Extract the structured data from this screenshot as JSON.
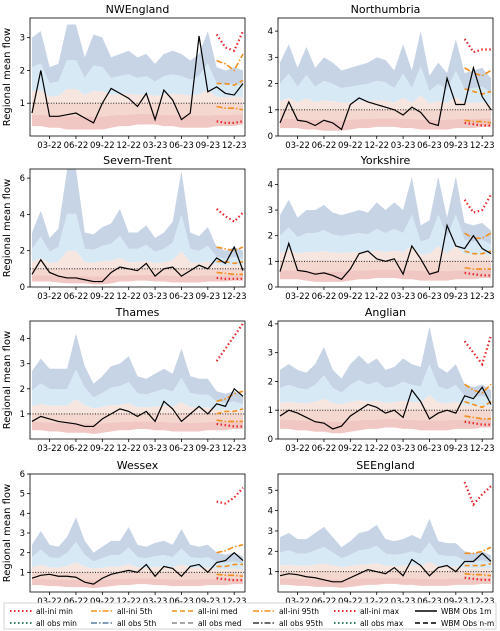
{
  "figure": {
    "ylabel": "Regional mean flow",
    "legend": [
      {
        "label": "all-ini min",
        "color": "#e8262a",
        "dash": "dot"
      },
      {
        "label": "all-ini 5th",
        "color": "#f28e1c",
        "dash": "dashdot"
      },
      {
        "label": "all-ini med",
        "color": "#f28e1c",
        "dash": "dash"
      },
      {
        "label": "all-ini 95th",
        "color": "#f28e1c",
        "dash": "dashdot"
      },
      {
        "label": "all-ini max",
        "color": "#e8262a",
        "dash": "dot"
      },
      {
        "label": "WBM Obs 1m",
        "color": "#000000",
        "dash": "solid"
      },
      {
        "label": "all obs min",
        "color": "#2f7d5b",
        "dash": "dot"
      },
      {
        "label": "all obs 5th",
        "color": "#5a7fa0",
        "dash": "dashdot"
      },
      {
        "label": "all obs med",
        "color": "#888888",
        "dash": "dash"
      },
      {
        "label": "all obs 95th",
        "color": "#3a3a3a",
        "dash": "dashdot"
      },
      {
        "label": "all obs max",
        "color": "#2f7d5b",
        "dash": "dot"
      },
      {
        "label": "WBM Obs n-m",
        "color": "#000000",
        "dash": "dash"
      }
    ],
    "xticks": [
      "03-22",
      "06-22",
      "09-22",
      "12-22",
      "03-23",
      "06-23",
      "09-23",
      "12-23"
    ]
  },
  "chart_data": [
    {
      "type": "line",
      "title": "NWEngland",
      "ylim": [
        0,
        3.6
      ],
      "yticks": [
        1,
        2,
        3
      ],
      "x": [
        "01-22",
        "02-22",
        "03-22",
        "04-22",
        "05-22",
        "06-22",
        "07-22",
        "08-22",
        "09-22",
        "10-22",
        "11-22",
        "12-22",
        "01-23",
        "02-23",
        "03-23",
        "04-23",
        "05-23",
        "06-23",
        "07-23",
        "08-23",
        "09-23",
        "10-23",
        "11-23",
        "12-23",
        "01-24"
      ],
      "obs": [
        0.7,
        2.0,
        0.6,
        0.6,
        0.65,
        0.7,
        0.55,
        0.4,
        1.0,
        1.45,
        1.3,
        1.15,
        0.9,
        1.3,
        0.5,
        1.4,
        1.1,
        0.5,
        0.7,
        3.05,
        1.35,
        1.5,
        1.3,
        1.25,
        1.6
      ],
      "band_max": [
        3.0,
        3.2,
        2.1,
        2.2,
        3.4,
        3.4,
        2.4,
        3.1,
        3.0,
        2.4,
        2.5,
        2.6,
        2.4,
        2.5,
        2.2,
        2.5,
        2.6,
        2.5,
        2.3,
        2.5,
        3.2,
        2.1,
        2.0,
        2.1,
        2.0
      ],
      "band_min": [
        0.3,
        0.3,
        0.25,
        0.25,
        0.2,
        0.2,
        0.2,
        0.2,
        0.2,
        0.25,
        0.3,
        0.3,
        0.35,
        0.35,
        0.35,
        0.3,
        0.3,
        0.25,
        0.25,
        0.25,
        0.25,
        0.3,
        0.3,
        0.3,
        0.35
      ],
      "ini_max": [
        3.1,
        2.7,
        2.6,
        3.2
      ],
      "ini_95": [
        2.3,
        2.2,
        2.0,
        2.5
      ],
      "ini_med": [
        1.6,
        1.6,
        1.55,
        1.7
      ],
      "ini_5": [
        0.9,
        0.85,
        0.85,
        0.8
      ],
      "ini_min": [
        0.45,
        0.4,
        0.4,
        0.45
      ]
    },
    {
      "type": "line",
      "title": "Northumbria",
      "ylim": [
        0,
        4.5
      ],
      "yticks": [
        0,
        1,
        2,
        3,
        4
      ],
      "x": [
        "01-22",
        "02-22",
        "03-22",
        "04-22",
        "05-22",
        "06-22",
        "07-22",
        "08-22",
        "09-22",
        "10-22",
        "11-22",
        "12-22",
        "01-23",
        "02-23",
        "03-23",
        "04-23",
        "05-23",
        "06-23",
        "07-23",
        "08-23",
        "09-23",
        "10-23",
        "11-23",
        "12-23",
        "01-24"
      ],
      "obs": [
        0.5,
        1.3,
        0.6,
        0.55,
        0.4,
        0.6,
        0.5,
        0.25,
        1.2,
        1.45,
        1.3,
        1.2,
        1.1,
        1.0,
        0.8,
        1.1,
        0.9,
        0.5,
        0.4,
        2.2,
        1.2,
        1.2,
        2.6,
        1.5,
        1.0
      ],
      "band_max": [
        2.8,
        3.5,
        2.6,
        3.4,
        2.6,
        3.0,
        2.8,
        2.5,
        2.6,
        2.7,
        2.8,
        3.0,
        2.9,
        2.5,
        3.5,
        2.5,
        4.0,
        2.3,
        2.8,
        2.4,
        3.7,
        2.4,
        2.5,
        2.6,
        2.2
      ],
      "band_min": [
        0.3,
        0.3,
        0.3,
        0.25,
        0.25,
        0.2,
        0.2,
        0.2,
        0.25,
        0.3,
        0.3,
        0.35,
        0.35,
        0.35,
        0.3,
        0.3,
        0.25,
        0.25,
        0.25,
        0.25,
        0.3,
        0.3,
        0.3,
        0.35,
        0.35
      ],
      "ini_max": [
        3.7,
        3.2,
        3.3,
        3.3
      ],
      "ini_95": [
        2.6,
        2.4,
        2.3,
        2.5
      ],
      "ini_med": [
        1.8,
        1.7,
        1.6,
        1.7
      ],
      "ini_5": [
        0.6,
        0.55,
        0.55,
        0.5
      ],
      "ini_min": [
        0.5,
        0.45,
        0.4,
        0.4
      ]
    },
    {
      "type": "line",
      "title": "Severn-Trent",
      "ylim": [
        0,
        6.5
      ],
      "yticks": [
        0,
        2,
        4,
        6
      ],
      "x": [
        "01-22",
        "02-22",
        "03-22",
        "04-22",
        "05-22",
        "06-22",
        "07-22",
        "08-22",
        "09-22",
        "10-22",
        "11-22",
        "12-22",
        "01-23",
        "02-23",
        "03-23",
        "04-23",
        "05-23",
        "06-23",
        "07-23",
        "08-23",
        "09-23",
        "10-23",
        "11-23",
        "12-23",
        "01-24"
      ],
      "obs": [
        0.7,
        1.5,
        0.8,
        0.6,
        0.5,
        0.5,
        0.4,
        0.3,
        0.3,
        0.8,
        1.1,
        1.0,
        0.9,
        1.3,
        0.6,
        1.0,
        1.1,
        0.6,
        0.9,
        1.2,
        1.0,
        1.6,
        1.3,
        2.2,
        0.9
      ],
      "band_max": [
        3.0,
        4.2,
        2.7,
        3.2,
        6.5,
        6.5,
        3.0,
        2.9,
        3.3,
        3.5,
        4.3,
        3.0,
        3.0,
        3.4,
        2.7,
        3.0,
        3.6,
        6.4,
        3.0,
        2.8,
        3.3,
        2.2,
        2.0,
        2.2,
        2.0
      ],
      "band_min": [
        0.3,
        0.3,
        0.3,
        0.25,
        0.2,
        0.2,
        0.2,
        0.15,
        0.15,
        0.2,
        0.3,
        0.3,
        0.35,
        0.35,
        0.3,
        0.3,
        0.25,
        0.25,
        0.25,
        0.25,
        0.3,
        0.3,
        0.3,
        0.35,
        0.35
      ],
      "ini_max": [
        4.3,
        3.9,
        3.6,
        4.1
      ],
      "ini_95": [
        2.2,
        2.1,
        2.0,
        2.2
      ],
      "ini_med": [
        1.4,
        1.4,
        1.3,
        1.4
      ],
      "ini_5": [
        0.8,
        0.75,
        0.7,
        0.7
      ],
      "ini_min": [
        0.5,
        0.45,
        0.45,
        0.45
      ]
    },
    {
      "type": "line",
      "title": "Yorkshire",
      "ylim": [
        0,
        4.6
      ],
      "yticks": [
        0,
        1,
        2,
        3,
        4
      ],
      "x": [
        "01-22",
        "02-22",
        "03-22",
        "04-22",
        "05-22",
        "06-22",
        "07-22",
        "08-22",
        "09-22",
        "10-22",
        "11-22",
        "12-22",
        "01-23",
        "02-23",
        "03-23",
        "04-23",
        "05-23",
        "06-23",
        "07-23",
        "08-23",
        "09-23",
        "10-23",
        "11-23",
        "12-23",
        "01-24"
      ],
      "obs": [
        0.6,
        1.7,
        0.65,
        0.6,
        0.5,
        0.55,
        0.45,
        0.3,
        0.7,
        1.3,
        1.4,
        1.1,
        1.0,
        1.1,
        0.5,
        1.6,
        1.1,
        0.5,
        0.6,
        2.4,
        1.6,
        1.5,
        2.0,
        1.5,
        1.3
      ],
      "band_max": [
        2.8,
        3.4,
        2.7,
        3.0,
        3.0,
        3.2,
        2.9,
        2.8,
        2.9,
        3.0,
        2.9,
        3.3,
        3.0,
        3.3,
        3.0,
        4.3,
        2.4,
        2.6,
        4.3,
        2.7,
        4.3,
        2.5,
        2.4,
        2.5,
        2.2
      ],
      "band_min": [
        0.3,
        0.3,
        0.3,
        0.25,
        0.2,
        0.2,
        0.2,
        0.2,
        0.25,
        0.3,
        0.3,
        0.35,
        0.35,
        0.35,
        0.3,
        0.3,
        0.25,
        0.25,
        0.25,
        0.25,
        0.3,
        0.3,
        0.3,
        0.35,
        0.35
      ],
      "ini_max": [
        3.4,
        2.9,
        3.0,
        3.6
      ],
      "ini_95": [
        2.1,
        1.9,
        1.9,
        2.1
      ],
      "ini_med": [
        1.4,
        1.3,
        1.3,
        1.4
      ],
      "ini_5": [
        0.75,
        0.7,
        0.7,
        0.7
      ],
      "ini_min": [
        0.55,
        0.5,
        0.45,
        0.45
      ]
    },
    {
      "type": "line",
      "title": "Thames",
      "ylim": [
        0,
        4.7
      ],
      "yticks": [
        1,
        2,
        3,
        4
      ],
      "x": [
        "01-22",
        "02-22",
        "03-22",
        "04-22",
        "05-22",
        "06-22",
        "07-22",
        "08-22",
        "09-22",
        "10-22",
        "11-22",
        "12-22",
        "01-23",
        "02-23",
        "03-23",
        "04-23",
        "05-23",
        "06-23",
        "07-23",
        "08-23",
        "09-23",
        "10-23",
        "11-23",
        "12-23",
        "01-24"
      ],
      "obs": [
        0.7,
        0.9,
        0.8,
        0.7,
        0.65,
        0.6,
        0.5,
        0.5,
        0.8,
        1.0,
        1.2,
        1.1,
        0.9,
        1.1,
        0.7,
        1.5,
        1.2,
        0.7,
        1.0,
        1.3,
        1.0,
        1.4,
        1.3,
        2.0,
        1.7
      ],
      "band_max": [
        2.7,
        3.2,
        2.8,
        2.8,
        2.8,
        4.2,
        2.9,
        2.2,
        2.5,
        2.9,
        3.0,
        3.3,
        2.5,
        2.4,
        2.6,
        2.8,
        2.6,
        3.6,
        2.5,
        2.4,
        2.4,
        1.9,
        1.8,
        1.9,
        1.7
      ],
      "band_min": [
        0.35,
        0.35,
        0.3,
        0.3,
        0.25,
        0.25,
        0.25,
        0.2,
        0.25,
        0.3,
        0.35,
        0.35,
        0.4,
        0.4,
        0.35,
        0.35,
        0.3,
        0.3,
        0.3,
        0.3,
        0.35,
        0.35,
        0.35,
        0.4,
        0.4
      ],
      "ini_max": [
        3.1,
        3.6,
        4.1,
        4.6
      ],
      "ini_95": [
        1.5,
        1.6,
        1.8,
        1.9
      ],
      "ini_med": [
        1.0,
        1.1,
        1.1,
        1.2
      ],
      "ini_5": [
        0.75,
        0.7,
        0.7,
        0.7
      ],
      "ini_min": [
        0.6,
        0.55,
        0.5,
        0.5
      ]
    },
    {
      "type": "line",
      "title": "Anglian",
      "ylim": [
        0,
        4.1
      ],
      "yticks": [
        0,
        1,
        2,
        3,
        4
      ],
      "x": [
        "01-22",
        "02-22",
        "03-22",
        "04-22",
        "05-22",
        "06-22",
        "07-22",
        "08-22",
        "09-22",
        "10-22",
        "11-22",
        "12-22",
        "01-23",
        "02-23",
        "03-23",
        "04-23",
        "05-23",
        "06-23",
        "07-23",
        "08-23",
        "09-23",
        "10-23",
        "11-23",
        "12-23",
        "01-24"
      ],
      "obs": [
        0.8,
        1.0,
        0.9,
        0.75,
        0.6,
        0.55,
        0.35,
        0.45,
        0.8,
        1.0,
        1.2,
        1.1,
        0.9,
        1.0,
        0.75,
        1.7,
        1.3,
        0.7,
        0.9,
        1.0,
        0.9,
        1.5,
        1.4,
        1.8,
        1.2
      ],
      "band_max": [
        2.4,
        2.6,
        2.4,
        2.3,
        2.6,
        3.2,
        2.4,
        2.1,
        2.6,
        2.9,
        2.6,
        2.8,
        2.4,
        2.5,
        2.8,
        2.6,
        2.5,
        3.9,
        2.5,
        2.3,
        2.6,
        1.9,
        1.8,
        1.9,
        1.7
      ],
      "band_min": [
        0.35,
        0.35,
        0.3,
        0.3,
        0.25,
        0.25,
        0.2,
        0.2,
        0.25,
        0.3,
        0.35,
        0.35,
        0.4,
        0.4,
        0.35,
        0.35,
        0.3,
        0.3,
        0.3,
        0.3,
        0.35,
        0.35,
        0.35,
        0.4,
        0.4
      ],
      "ini_max": [
        3.4,
        3.0,
        2.6,
        3.6
      ],
      "ini_95": [
        1.9,
        1.7,
        1.6,
        1.9
      ],
      "ini_med": [
        1.3,
        1.2,
        1.1,
        1.3
      ],
      "ini_5": [
        0.8,
        0.75,
        0.7,
        0.7
      ],
      "ini_min": [
        0.6,
        0.55,
        0.5,
        0.5
      ]
    },
    {
      "type": "line",
      "title": "Wessex",
      "ylim": [
        0,
        6.0
      ],
      "yticks": [
        1,
        2,
        3,
        4,
        5,
        6
      ],
      "x": [
        "01-22",
        "02-22",
        "03-22",
        "04-22",
        "05-22",
        "06-22",
        "07-22",
        "08-22",
        "09-22",
        "10-22",
        "11-22",
        "12-22",
        "01-23",
        "02-23",
        "03-23",
        "04-23",
        "05-23",
        "06-23",
        "07-23",
        "08-23",
        "09-23",
        "10-23",
        "11-23",
        "12-23",
        "01-24"
      ],
      "obs": [
        0.7,
        0.85,
        0.9,
        0.8,
        0.8,
        0.75,
        0.5,
        0.4,
        0.7,
        0.9,
        1.0,
        1.1,
        1.0,
        1.4,
        0.8,
        1.3,
        1.2,
        0.8,
        1.3,
        1.4,
        1.0,
        1.5,
        1.6,
        2.0,
        1.6
      ],
      "band_max": [
        2.4,
        3.1,
        2.4,
        2.3,
        2.8,
        3.8,
        2.6,
        2.0,
        2.3,
        2.6,
        2.6,
        3.3,
        2.4,
        2.3,
        2.5,
        2.6,
        2.4,
        3.2,
        2.4,
        2.3,
        2.4,
        2.0,
        1.9,
        2.0,
        1.8
      ],
      "band_min": [
        0.35,
        0.35,
        0.3,
        0.3,
        0.25,
        0.25,
        0.25,
        0.2,
        0.25,
        0.3,
        0.35,
        0.35,
        0.4,
        0.4,
        0.35,
        0.35,
        0.3,
        0.3,
        0.3,
        0.3,
        0.35,
        0.35,
        0.35,
        0.4,
        0.4
      ],
      "ini_max": [
        4.6,
        4.5,
        4.8,
        5.3
      ],
      "ini_95": [
        2.0,
        2.1,
        2.3,
        2.4
      ],
      "ini_med": [
        1.3,
        1.3,
        1.4,
        1.4
      ],
      "ini_5": [
        0.9,
        0.85,
        0.85,
        0.8
      ],
      "ini_min": [
        0.7,
        0.65,
        0.6,
        0.6
      ]
    },
    {
      "type": "line",
      "title": "SEEngland",
      "ylim": [
        0,
        5.8
      ],
      "yticks": [
        1,
        2,
        3,
        4,
        5
      ],
      "x": [
        "01-22",
        "02-22",
        "03-22",
        "04-22",
        "05-22",
        "06-22",
        "07-22",
        "08-22",
        "09-22",
        "10-22",
        "11-22",
        "12-22",
        "01-23",
        "02-23",
        "03-23",
        "04-23",
        "05-23",
        "06-23",
        "07-23",
        "08-23",
        "09-23",
        "10-23",
        "11-23",
        "12-23",
        "01-24"
      ],
      "obs": [
        0.8,
        0.9,
        0.85,
        0.75,
        0.7,
        0.6,
        0.5,
        0.5,
        0.7,
        0.9,
        1.1,
        1.0,
        0.9,
        1.2,
        0.8,
        1.6,
        1.3,
        0.8,
        1.2,
        1.3,
        1.0,
        1.5,
        1.5,
        1.9,
        1.5
      ],
      "band_max": [
        2.7,
        2.9,
        2.6,
        2.6,
        2.9,
        3.2,
        2.7,
        2.2,
        2.5,
        2.9,
        3.0,
        3.3,
        2.6,
        2.5,
        2.6,
        2.8,
        2.6,
        3.6,
        2.5,
        2.4,
        2.4,
        2.0,
        1.9,
        2.0,
        1.8
      ],
      "band_min": [
        0.35,
        0.35,
        0.3,
        0.3,
        0.25,
        0.25,
        0.25,
        0.2,
        0.25,
        0.3,
        0.35,
        0.35,
        0.4,
        0.4,
        0.35,
        0.35,
        0.3,
        0.3,
        0.3,
        0.3,
        0.35,
        0.35,
        0.35,
        0.4,
        0.4
      ],
      "ini_max": [
        5.4,
        4.3,
        4.8,
        5.2
      ],
      "ini_95": [
        1.9,
        1.9,
        2.0,
        2.2
      ],
      "ini_med": [
        1.3,
        1.3,
        1.3,
        1.4
      ],
      "ini_5": [
        0.9,
        0.85,
        0.85,
        0.8
      ],
      "ini_min": [
        0.7,
        0.65,
        0.6,
        0.6
      ]
    }
  ]
}
